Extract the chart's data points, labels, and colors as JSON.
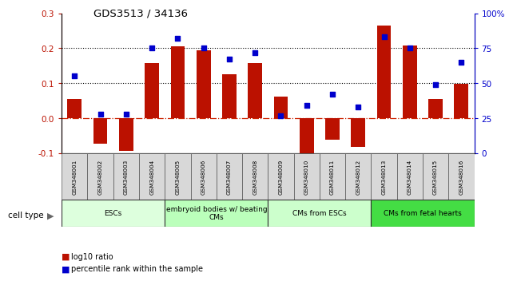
{
  "title": "GDS3513 / 34136",
  "samples": [
    "GSM348001",
    "GSM348002",
    "GSM348003",
    "GSM348004",
    "GSM348005",
    "GSM348006",
    "GSM348007",
    "GSM348008",
    "GSM348009",
    "GSM348010",
    "GSM348011",
    "GSM348012",
    "GSM348013",
    "GSM348014",
    "GSM348015",
    "GSM348016"
  ],
  "log10_ratio": [
    0.055,
    -0.072,
    -0.093,
    0.158,
    0.205,
    0.195,
    0.125,
    0.158,
    0.062,
    -0.125,
    -0.062,
    -0.082,
    0.265,
    0.208,
    0.055,
    0.098
  ],
  "percentile_rank": [
    55,
    28,
    28,
    75,
    82,
    75,
    67,
    72,
    27,
    34,
    42,
    33,
    83,
    75,
    49,
    65
  ],
  "left_ylim": [
    -0.1,
    0.3
  ],
  "right_ylim": [
    0,
    100
  ],
  "left_yticks": [
    -0.1,
    0.0,
    0.1,
    0.2,
    0.3
  ],
  "right_yticks": [
    0,
    25,
    50,
    75,
    100
  ],
  "right_yticklabels": [
    "0",
    "25",
    "50",
    "75",
    "100%"
  ],
  "hlines": [
    0.1,
    0.2
  ],
  "bar_color": "#bb1100",
  "dot_color": "#0000cc",
  "zero_line_color": "#cc2200",
  "cell_groups": [
    {
      "label": "ESCs",
      "start": 0,
      "end": 3,
      "color": "#ddffdd"
    },
    {
      "label": "embryoid bodies w/ beating\nCMs",
      "start": 4,
      "end": 7,
      "color": "#bbffbb"
    },
    {
      "label": "CMs from ESCs",
      "start": 8,
      "end": 11,
      "color": "#ccffcc"
    },
    {
      "label": "CMs from fetal hearts",
      "start": 12,
      "end": 15,
      "color": "#44dd44"
    }
  ],
  "cell_type_label": "cell type",
  "legend_red_label": "log10 ratio",
  "legend_blue_label": "percentile rank within the sample",
  "background_color": "#ffffff"
}
